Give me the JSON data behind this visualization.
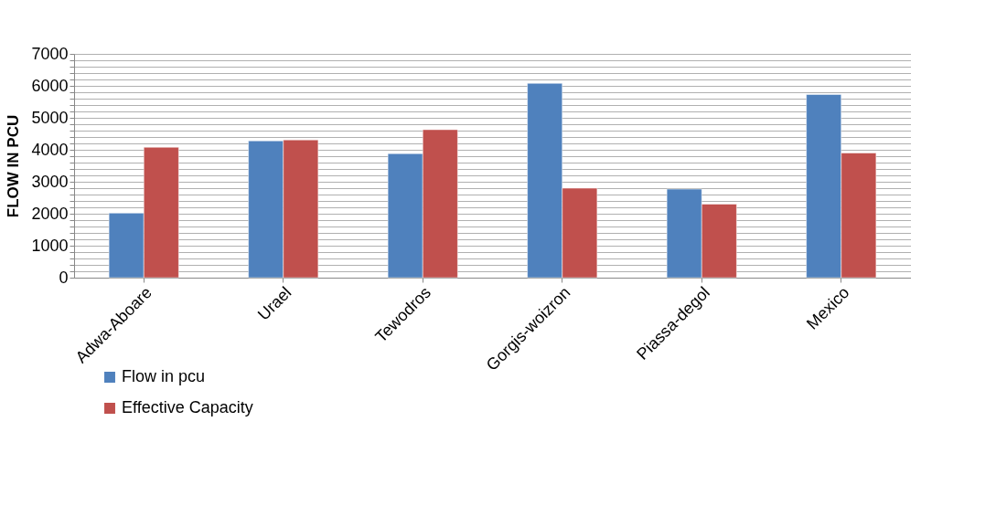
{
  "chart_data": {
    "type": "bar",
    "ylabel": "FLOW IN PCU",
    "categories": [
      "Adwa-Aboare",
      "Urael",
      "Tewodros",
      "Gorgis-woizron",
      "Piassa-degol",
      "Mexico"
    ],
    "series": [
      {
        "name": "Flow in pcu",
        "color": "#4f81bd",
        "values": [
          2020,
          4280,
          3880,
          6080,
          2770,
          5730
        ]
      },
      {
        "name": "Effective Capacity",
        "color": "#c0504d",
        "values": [
          4080,
          4310,
          4630,
          2800,
          2300,
          3900
        ]
      }
    ],
    "ylim": [
      0,
      7000
    ],
    "yticks": [
      0,
      {
        "value": 200,
        "label": null
      },
      {
        "value": 400,
        "label": null
      },
      {
        "value": 600,
        "label": null
      },
      {
        "value": 800,
        "label": null
      },
      1000,
      {
        "value": 1200,
        "label": null
      },
      {
        "value": 1400,
        "label": null
      },
      {
        "value": 1600,
        "label": null
      },
      {
        "value": 1800,
        "label": null
      },
      2000,
      {
        "value": 2200,
        "label": null
      },
      {
        "value": 2400,
        "label": null
      },
      {
        "value": 2600,
        "label": null
      },
      {
        "value": 2800,
        "label": null
      },
      3000,
      {
        "value": 3200,
        "label": null
      },
      {
        "value": 3400,
        "label": null
      },
      {
        "value": 3600,
        "label": null
      },
      {
        "value": 3800,
        "label": null
      },
      4000,
      {
        "value": 4200,
        "label": null
      },
      {
        "value": 4400,
        "label": null
      },
      {
        "value": 4600,
        "label": null
      },
      {
        "value": 4800,
        "label": null
      },
      5000,
      {
        "value": 5200,
        "label": null
      },
      {
        "value": 5400,
        "label": null
      },
      {
        "value": 5600,
        "label": null
      },
      {
        "value": 5800,
        "label": null
      },
      6000,
      {
        "value": 6200,
        "label": null
      },
      {
        "value": 6400,
        "label": null
      },
      {
        "value": 6600,
        "label": null
      },
      {
        "value": 6800,
        "label": null
      },
      7000
    ],
    "grid": true,
    "legend": "bottom left"
  }
}
